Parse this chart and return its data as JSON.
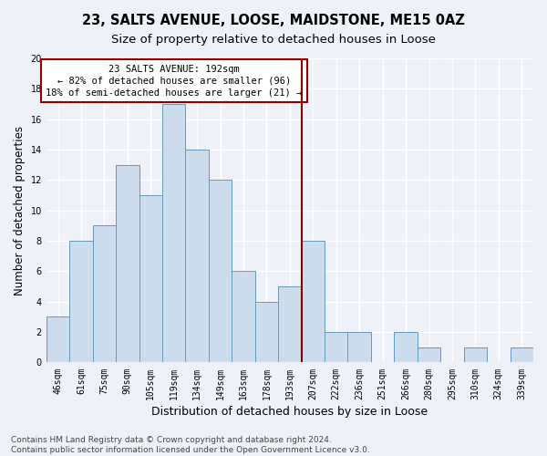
{
  "title": "23, SALTS AVENUE, LOOSE, MAIDSTONE, ME15 0AZ",
  "subtitle": "Size of property relative to detached houses in Loose",
  "xlabel": "Distribution of detached houses by size in Loose",
  "ylabel": "Number of detached properties",
  "categories": [
    "46sqm",
    "61sqm",
    "75sqm",
    "90sqm",
    "105sqm",
    "119sqm",
    "134sqm",
    "149sqm",
    "163sqm",
    "178sqm",
    "193sqm",
    "207sqm",
    "222sqm",
    "236sqm",
    "251sqm",
    "266sqm",
    "280sqm",
    "295sqm",
    "310sqm",
    "324sqm",
    "339sqm"
  ],
  "values": [
    3,
    8,
    9,
    13,
    11,
    17,
    14,
    12,
    6,
    4,
    5,
    8,
    2,
    2,
    0,
    2,
    1,
    0,
    1,
    0,
    1
  ],
  "bar_color": "#ccdcec",
  "bar_edgecolor": "#6699bb",
  "vline_index": 10.5,
  "annotation_line1": "23 SALTS AVENUE: 192sqm",
  "annotation_line2": "← 82% of detached houses are smaller (96)",
  "annotation_line3": "18% of semi-detached houses are larger (21) →",
  "ylim": [
    0,
    20
  ],
  "yticks": [
    0,
    2,
    4,
    6,
    8,
    10,
    12,
    14,
    16,
    18,
    20
  ],
  "footer_line1": "Contains HM Land Registry data © Crown copyright and database right 2024.",
  "footer_line2": "Contains public sector information licensed under the Open Government Licence v3.0.",
  "bg_color": "#eef2f8",
  "grid_color": "#ffffff",
  "title_fontsize": 10.5,
  "subtitle_fontsize": 9.5,
  "xlabel_fontsize": 9,
  "ylabel_fontsize": 8.5,
  "tick_fontsize": 7,
  "annot_fontsize": 7.5,
  "footer_fontsize": 6.5
}
